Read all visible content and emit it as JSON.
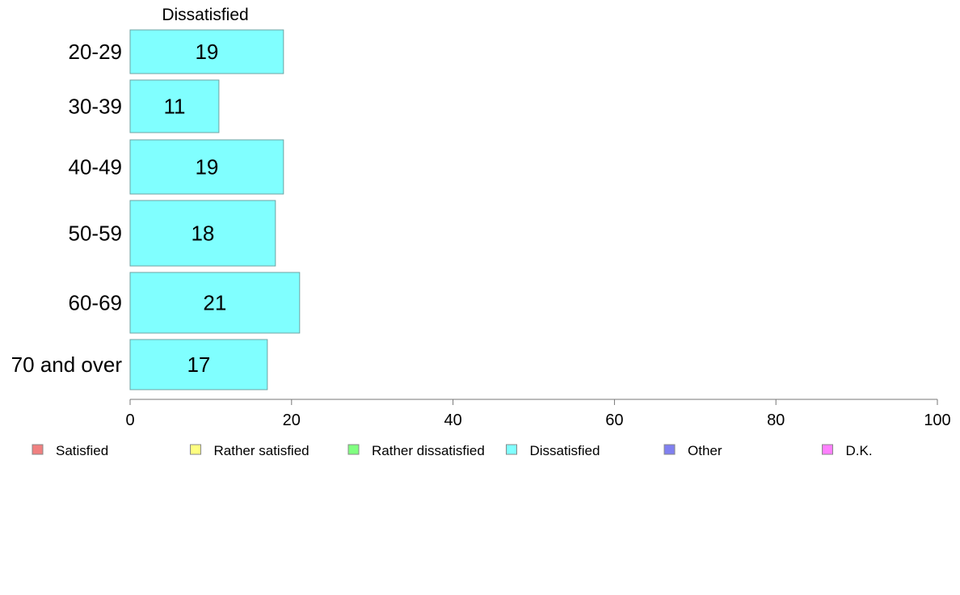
{
  "chart_data": {
    "type": "bar",
    "orientation": "horizontal",
    "title": "",
    "xlabel": "",
    "ylabel": "",
    "series_title": "Dissatisfied",
    "categories": [
      "20-29",
      "30-39",
      "40-49",
      "50-59",
      "60-69",
      "70 and over"
    ],
    "series": [
      {
        "name": "Dissatisfied",
        "color": "#80ffff",
        "values": [
          19,
          11,
          19,
          18,
          21,
          17
        ]
      }
    ],
    "xlim": [
      0,
      100
    ],
    "xticks": [
      0,
      20,
      40,
      60,
      80,
      100
    ],
    "grid": false,
    "legend_position": "bottom",
    "legend": [
      {
        "name": "Satisfied",
        "color": "#f08080"
      },
      {
        "name": "Rather satisfied",
        "color": "#ffff80"
      },
      {
        "name": "Rather dissatisfied",
        "color": "#80ff80"
      },
      {
        "name": "Dissatisfied",
        "color": "#80ffff"
      },
      {
        "name": "Other",
        "color": "#8080f0"
      },
      {
        "name": "D.K.",
        "color": "#ff80ff"
      }
    ]
  }
}
